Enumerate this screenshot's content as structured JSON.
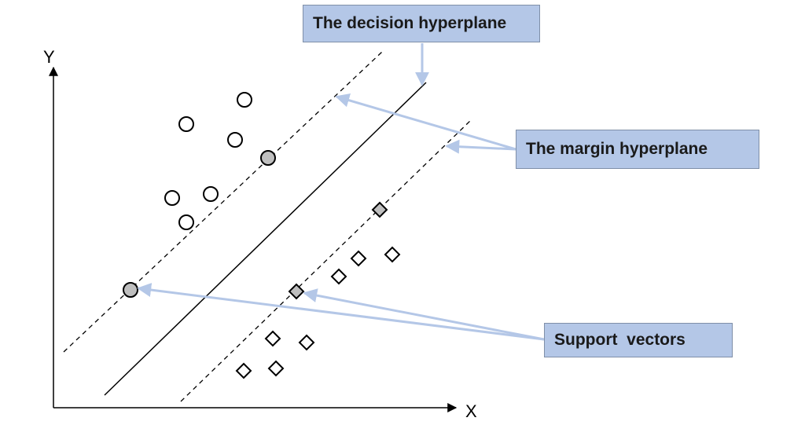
{
  "axes": {
    "x_label": "X",
    "y_label": "Y"
  },
  "callouts": {
    "decision": "The decision hyperplane",
    "margin": "The margin hyperplane",
    "support": "Support  vectors"
  },
  "colors": {
    "line": "#000000",
    "arrow": "#b4c7e7",
    "support_fill": "#bfbfbf",
    "box_fill": "#b4c7e7"
  }
}
